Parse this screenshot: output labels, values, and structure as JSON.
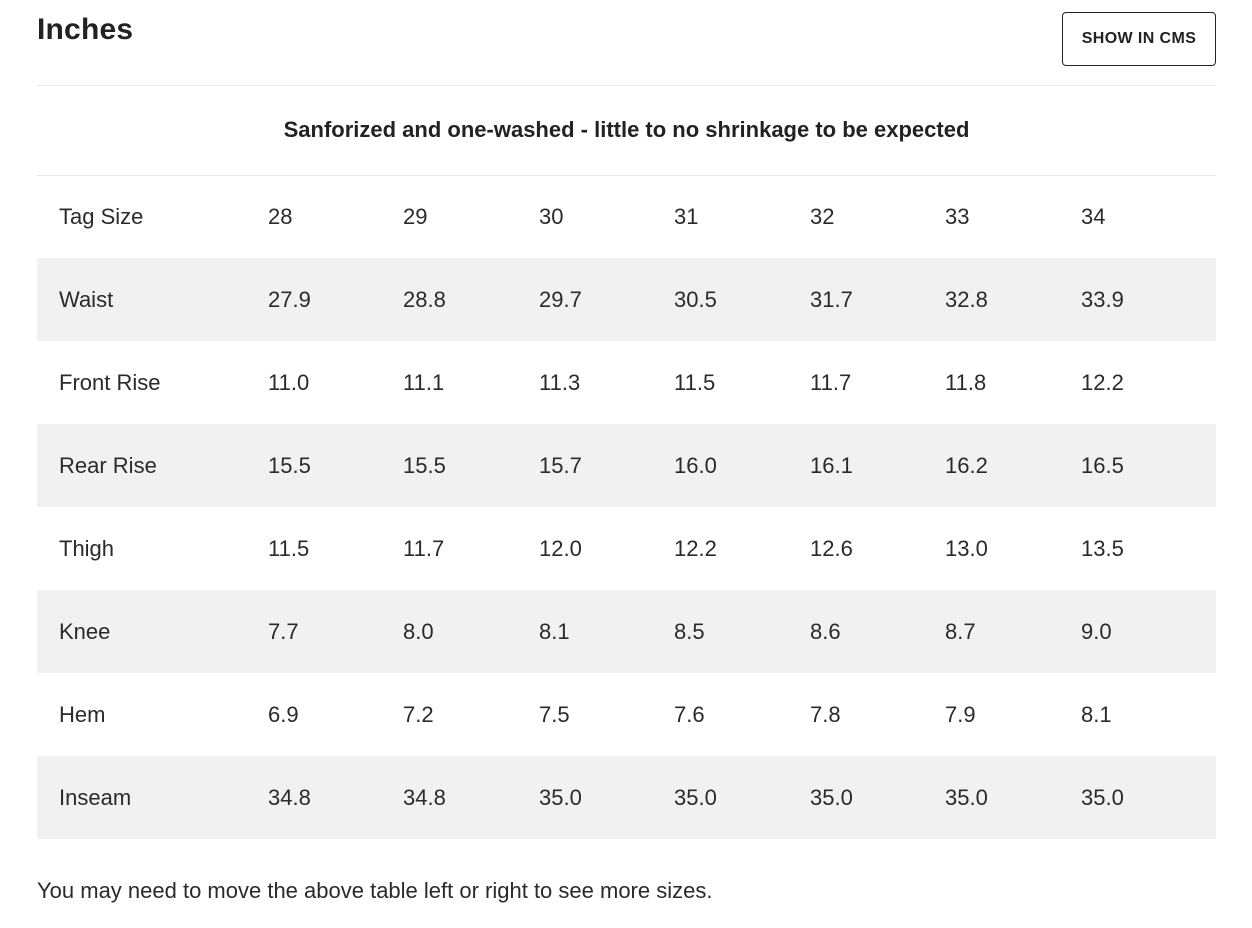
{
  "header": {
    "title": "Inches",
    "cms_button_label": "SHOW IN CMS"
  },
  "subtitle": "Sanforized and one-washed - little to no shrinkage to be expected",
  "table": {
    "rows": [
      {
        "label": "Tag Size",
        "values": [
          "28",
          "29",
          "30",
          "31",
          "32",
          "33",
          "34"
        ]
      },
      {
        "label": "Waist",
        "values": [
          "27.9",
          "28.8",
          "29.7",
          "30.5",
          "31.7",
          "32.8",
          "33.9"
        ]
      },
      {
        "label": "Front Rise",
        "values": [
          "11.0",
          "11.1",
          "11.3",
          "11.5",
          "11.7",
          "11.8",
          "12.2"
        ]
      },
      {
        "label": "Rear Rise",
        "values": [
          "15.5",
          "15.5",
          "15.7",
          "16.0",
          "16.1",
          "16.2",
          "16.5"
        ]
      },
      {
        "label": "Thigh",
        "values": [
          "11.5",
          "11.7",
          "12.0",
          "12.2",
          "12.6",
          "13.0",
          "13.5"
        ]
      },
      {
        "label": "Knee",
        "values": [
          "7.7",
          "8.0",
          "8.1",
          "8.5",
          "8.6",
          "8.7",
          "9.0"
        ]
      },
      {
        "label": "Hem",
        "values": [
          "6.9",
          "7.2",
          "7.5",
          "7.6",
          "7.8",
          "7.9",
          "8.1"
        ]
      },
      {
        "label": "Inseam",
        "values": [
          "34.8",
          "34.8",
          "35.0",
          "35.0",
          "35.0",
          "35.0",
          "35.0"
        ]
      }
    ]
  },
  "note": "You may need to move the above table left or right to see more sizes.",
  "colors": {
    "text": "#222222",
    "row_shade": "#f1f1f1",
    "divider": "#e6e6e6"
  }
}
